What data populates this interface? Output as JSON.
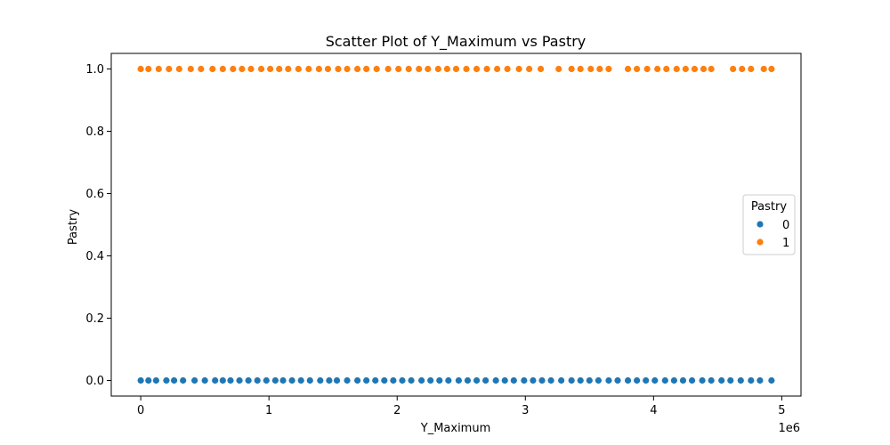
{
  "chart_data": {
    "type": "scatter",
    "title": "Scatter Plot of Y_Maximum vs Pastry",
    "xlabel": "Y_Maximum",
    "ylabel": "Pastry",
    "x_offset_label": "1e6",
    "xlim": [
      -230000,
      5150000
    ],
    "ylim": [
      -0.05,
      1.05
    ],
    "x_ticks": [
      0,
      1000000,
      2000000,
      3000000,
      4000000,
      5000000
    ],
    "x_tick_labels": [
      "0",
      "1",
      "2",
      "3",
      "4",
      "5"
    ],
    "y_ticks": [
      0.0,
      0.2,
      0.4,
      0.6,
      0.8,
      1.0
    ],
    "y_tick_labels": [
      "0.0",
      "0.2",
      "0.4",
      "0.6",
      "0.8",
      "1.0"
    ],
    "grid": false,
    "legend": {
      "title": "Pastry",
      "placement": "center-right"
    },
    "series": [
      {
        "name": "0",
        "color": "#1f77b4",
        "y": 0,
        "x": [
          0,
          60000,
          120000,
          200000,
          260000,
          330000,
          420000,
          500000,
          580000,
          640000,
          700000,
          770000,
          840000,
          910000,
          980000,
          1050000,
          1110000,
          1180000,
          1250000,
          1320000,
          1400000,
          1470000,
          1530000,
          1610000,
          1690000,
          1760000,
          1830000,
          1900000,
          1970000,
          2040000,
          2110000,
          2190000,
          2260000,
          2330000,
          2400000,
          2480000,
          2550000,
          2620000,
          2690000,
          2770000,
          2840000,
          2910000,
          2990000,
          3060000,
          3130000,
          3200000,
          3280000,
          3360000,
          3430000,
          3500000,
          3570000,
          3650000,
          3720000,
          3800000,
          3870000,
          3940000,
          4010000,
          4090000,
          4160000,
          4230000,
          4300000,
          4380000,
          4450000,
          4530000,
          4600000,
          4680000,
          4760000,
          4830000,
          4920000
        ]
      },
      {
        "name": "1",
        "color": "#ff7f0e",
        "y": 1,
        "x": [
          0,
          60000,
          140000,
          220000,
          300000,
          390000,
          470000,
          560000,
          640000,
          720000,
          790000,
          860000,
          940000,
          1010000,
          1080000,
          1150000,
          1230000,
          1310000,
          1390000,
          1460000,
          1540000,
          1610000,
          1690000,
          1760000,
          1840000,
          1930000,
          2010000,
          2090000,
          2170000,
          2240000,
          2320000,
          2390000,
          2460000,
          2540000,
          2620000,
          2700000,
          2780000,
          2860000,
          2950000,
          3030000,
          3120000,
          3260000,
          3360000,
          3430000,
          3510000,
          3580000,
          3650000,
          3800000,
          3870000,
          3950000,
          4030000,
          4100000,
          4180000,
          4250000,
          4320000,
          4390000,
          4450000,
          4620000,
          4690000,
          4760000,
          4860000,
          4920000
        ]
      }
    ]
  }
}
